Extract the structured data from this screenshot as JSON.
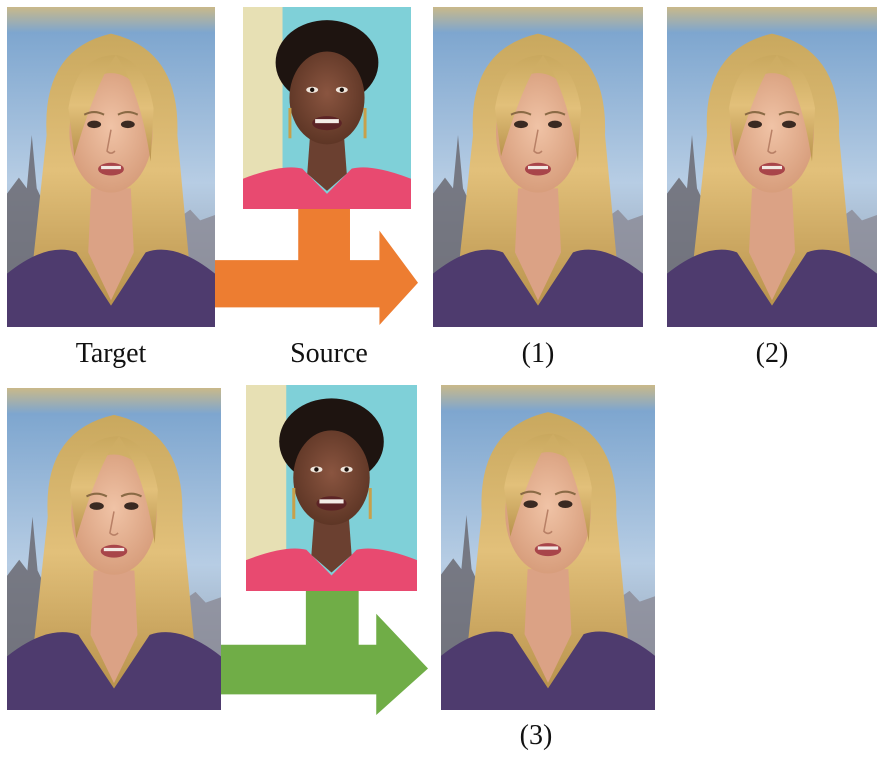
{
  "captions": {
    "target": "Target",
    "source": "Source",
    "result1": "(1)",
    "result2": "(2)",
    "result3": "(3)"
  },
  "colors": {
    "arrow_top": "#ED7D31",
    "arrow_bottom": "#70AD47",
    "hair": "#D8B46A",
    "skin": "#E8B596",
    "studio_sky": "#8FB2D6",
    "top_dark": "#5A4A7A",
    "source_bg": "#7FD0D8",
    "source_skin": "#6B4030",
    "source_top": "#E84A70"
  },
  "icons": {
    "arrow_top": "bent-arrow-right",
    "arrow_bottom": "bent-arrow-right"
  }
}
